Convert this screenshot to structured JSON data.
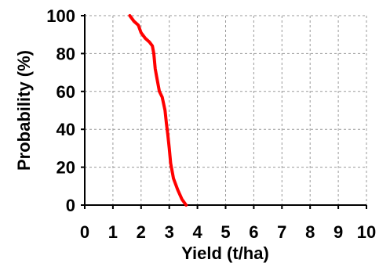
{
  "chart_data": {
    "type": "line",
    "xlabel": "Yield (t/ha)",
    "ylabel": "Probability (%)",
    "xlim": [
      0,
      10
    ],
    "ylim": [
      0,
      100
    ],
    "xticks": [
      "0",
      "1",
      "2",
      "3",
      "4",
      "5",
      "6",
      "7",
      "8",
      "9",
      "10"
    ],
    "yticks": [
      "0",
      "20",
      "40",
      "60",
      "80",
      "100"
    ],
    "grid": true,
    "series": [
      {
        "color": "#ff0000",
        "x": [
          1.6,
          1.75,
          1.9,
          2.0,
          2.15,
          2.3,
          2.4,
          2.45,
          2.5,
          2.55,
          2.65,
          2.75,
          2.85,
          2.9,
          2.95,
          3.0,
          3.05,
          3.15,
          3.3,
          3.45,
          3.6
        ],
        "y": [
          100,
          97,
          95,
          91,
          88,
          86,
          84,
          80,
          72,
          68,
          60,
          57,
          50,
          43,
          37,
          30,
          22,
          14,
          8,
          3,
          0
        ]
      }
    ]
  }
}
